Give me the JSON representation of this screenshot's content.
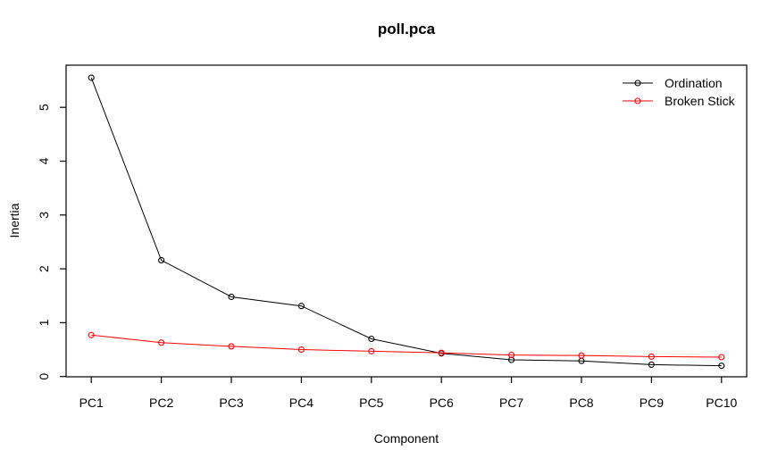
{
  "chart_data": {
    "type": "line",
    "title": "poll.pca",
    "xlabel": "Component",
    "ylabel": "Inertia",
    "categories": [
      "PC1",
      "PC2",
      "PC3",
      "PC4",
      "PC5",
      "PC6",
      "PC7",
      "PC8",
      "PC9",
      "PC10"
    ],
    "series": [
      {
        "name": "Ordination",
        "color": "#000000",
        "marker": "open-circle",
        "values": [
          5.55,
          2.16,
          1.48,
          1.31,
          0.7,
          0.43,
          0.31,
          0.29,
          0.22,
          0.2
        ]
      },
      {
        "name": "Broken Stick",
        "color": "#ff0000",
        "marker": "open-circle",
        "values": [
          0.77,
          0.63,
          0.56,
          0.5,
          0.47,
          0.44,
          0.4,
          0.39,
          0.37,
          0.36
        ]
      }
    ],
    "y_ticks": [
      0,
      1,
      2,
      3,
      4,
      5
    ],
    "ylim": [
      0,
      5.79
    ],
    "grid": false,
    "legend_position": "top-right",
    "axis_color": "#000000",
    "background_color": "#ffffff"
  }
}
